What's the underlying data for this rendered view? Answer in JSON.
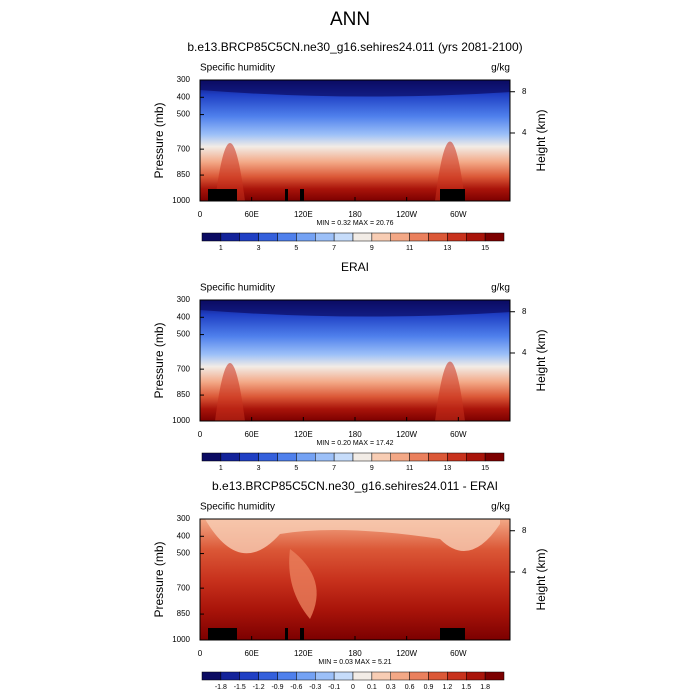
{
  "title": "ANN",
  "chart_data": [
    {
      "type": "contour",
      "title": "b.e13.BRCP85C5CN.ne30_g16.sehires24.011 (yrs 2081-2100)",
      "left_label": "Specific humidity",
      "right_label": "g/kg",
      "y_label": "Pressure (mb)",
      "y2_label": "Height (km)",
      "xlim": [
        0,
        360
      ],
      "xticks": [
        0,
        {
          "value": 60,
          "label": "60E"
        },
        {
          "value": 120,
          "label": "120E"
        },
        180,
        {
          "value": 240,
          "label": "120W"
        },
        {
          "value": 300,
          "label": "60W"
        }
      ],
      "ylim": [
        1000,
        300
      ],
      "yticks": [
        300,
        400,
        500,
        700,
        850,
        1000
      ],
      "y2ticks": [
        4,
        8
      ],
      "stats": "MIN =   0.32  MAX = 20.76",
      "colorbar": {
        "labels": [
          1,
          3,
          5,
          7,
          9,
          11,
          13,
          15
        ],
        "colors": [
          "#0b0b62",
          "#13239a",
          "#1f3fc4",
          "#3460dc",
          "#4f80ec",
          "#74a2f4",
          "#9cc0f8",
          "#c6dcfa",
          "#f2ece6",
          "#f8cdb4",
          "#f3a886",
          "#ea805d",
          "#db5837",
          "#c8321d",
          "#a9140a",
          "#7c0000"
        ]
      }
    },
    {
      "type": "contour",
      "title": "ERAI",
      "left_label": "Specific humidity",
      "right_label": "g/kg",
      "y_label": "Pressure (mb)",
      "y2_label": "Height (km)",
      "xlim": [
        0,
        360
      ],
      "xticks": [
        0,
        {
          "value": 60,
          "label": "60E"
        },
        {
          "value": 120,
          "label": "120E"
        },
        180,
        {
          "value": 240,
          "label": "120W"
        },
        {
          "value": 300,
          "label": "60W"
        }
      ],
      "ylim": [
        1000,
        300
      ],
      "yticks": [
        300,
        400,
        500,
        700,
        850,
        1000
      ],
      "y2ticks": [
        4,
        8
      ],
      "stats": "MIN =   0.20  MAX = 17.42",
      "colorbar": {
        "labels": [
          1,
          3,
          5,
          7,
          9,
          11,
          13,
          15
        ],
        "colors": [
          "#0b0b62",
          "#13239a",
          "#1f3fc4",
          "#3460dc",
          "#4f80ec",
          "#74a2f4",
          "#9cc0f8",
          "#c6dcfa",
          "#f2ece6",
          "#f8cdb4",
          "#f3a886",
          "#ea805d",
          "#db5837",
          "#c8321d",
          "#a9140a",
          "#7c0000"
        ]
      }
    },
    {
      "type": "contour",
      "title": "b.e13.BRCP85C5CN.ne30_g16.sehires24.011 - ERAI",
      "left_label": "Specific humidity",
      "right_label": "g/kg",
      "y_label": "Pressure (mb)",
      "y2_label": "Height (km)",
      "xlim": [
        0,
        360
      ],
      "xticks": [
        0,
        {
          "value": 60,
          "label": "60E"
        },
        {
          "value": 120,
          "label": "120E"
        },
        180,
        {
          "value": 240,
          "label": "120W"
        },
        {
          "value": 300,
          "label": "60W"
        }
      ],
      "ylim": [
        1000,
        300
      ],
      "yticks": [
        300,
        400,
        500,
        700,
        850,
        1000
      ],
      "y2ticks": [
        4,
        8
      ],
      "stats": "MIN =   0.03  MAX =   5.21",
      "colorbar": {
        "labels": [
          -1.8,
          -1.5,
          -1.2,
          -0.9,
          -0.6,
          -0.3,
          -0.1,
          0,
          0.1,
          0.3,
          0.6,
          0.9,
          1.2,
          1.5,
          1.8
        ],
        "colors": [
          "#0b0b62",
          "#13239a",
          "#1f3fc4",
          "#3460dc",
          "#4f80ec",
          "#74a2f4",
          "#9cc0f8",
          "#c6dcfa",
          "#f2ece6",
          "#f8cdb4",
          "#f3a886",
          "#ea805d",
          "#db5837",
          "#c8321d",
          "#a9140a",
          "#7c0000"
        ]
      }
    }
  ]
}
